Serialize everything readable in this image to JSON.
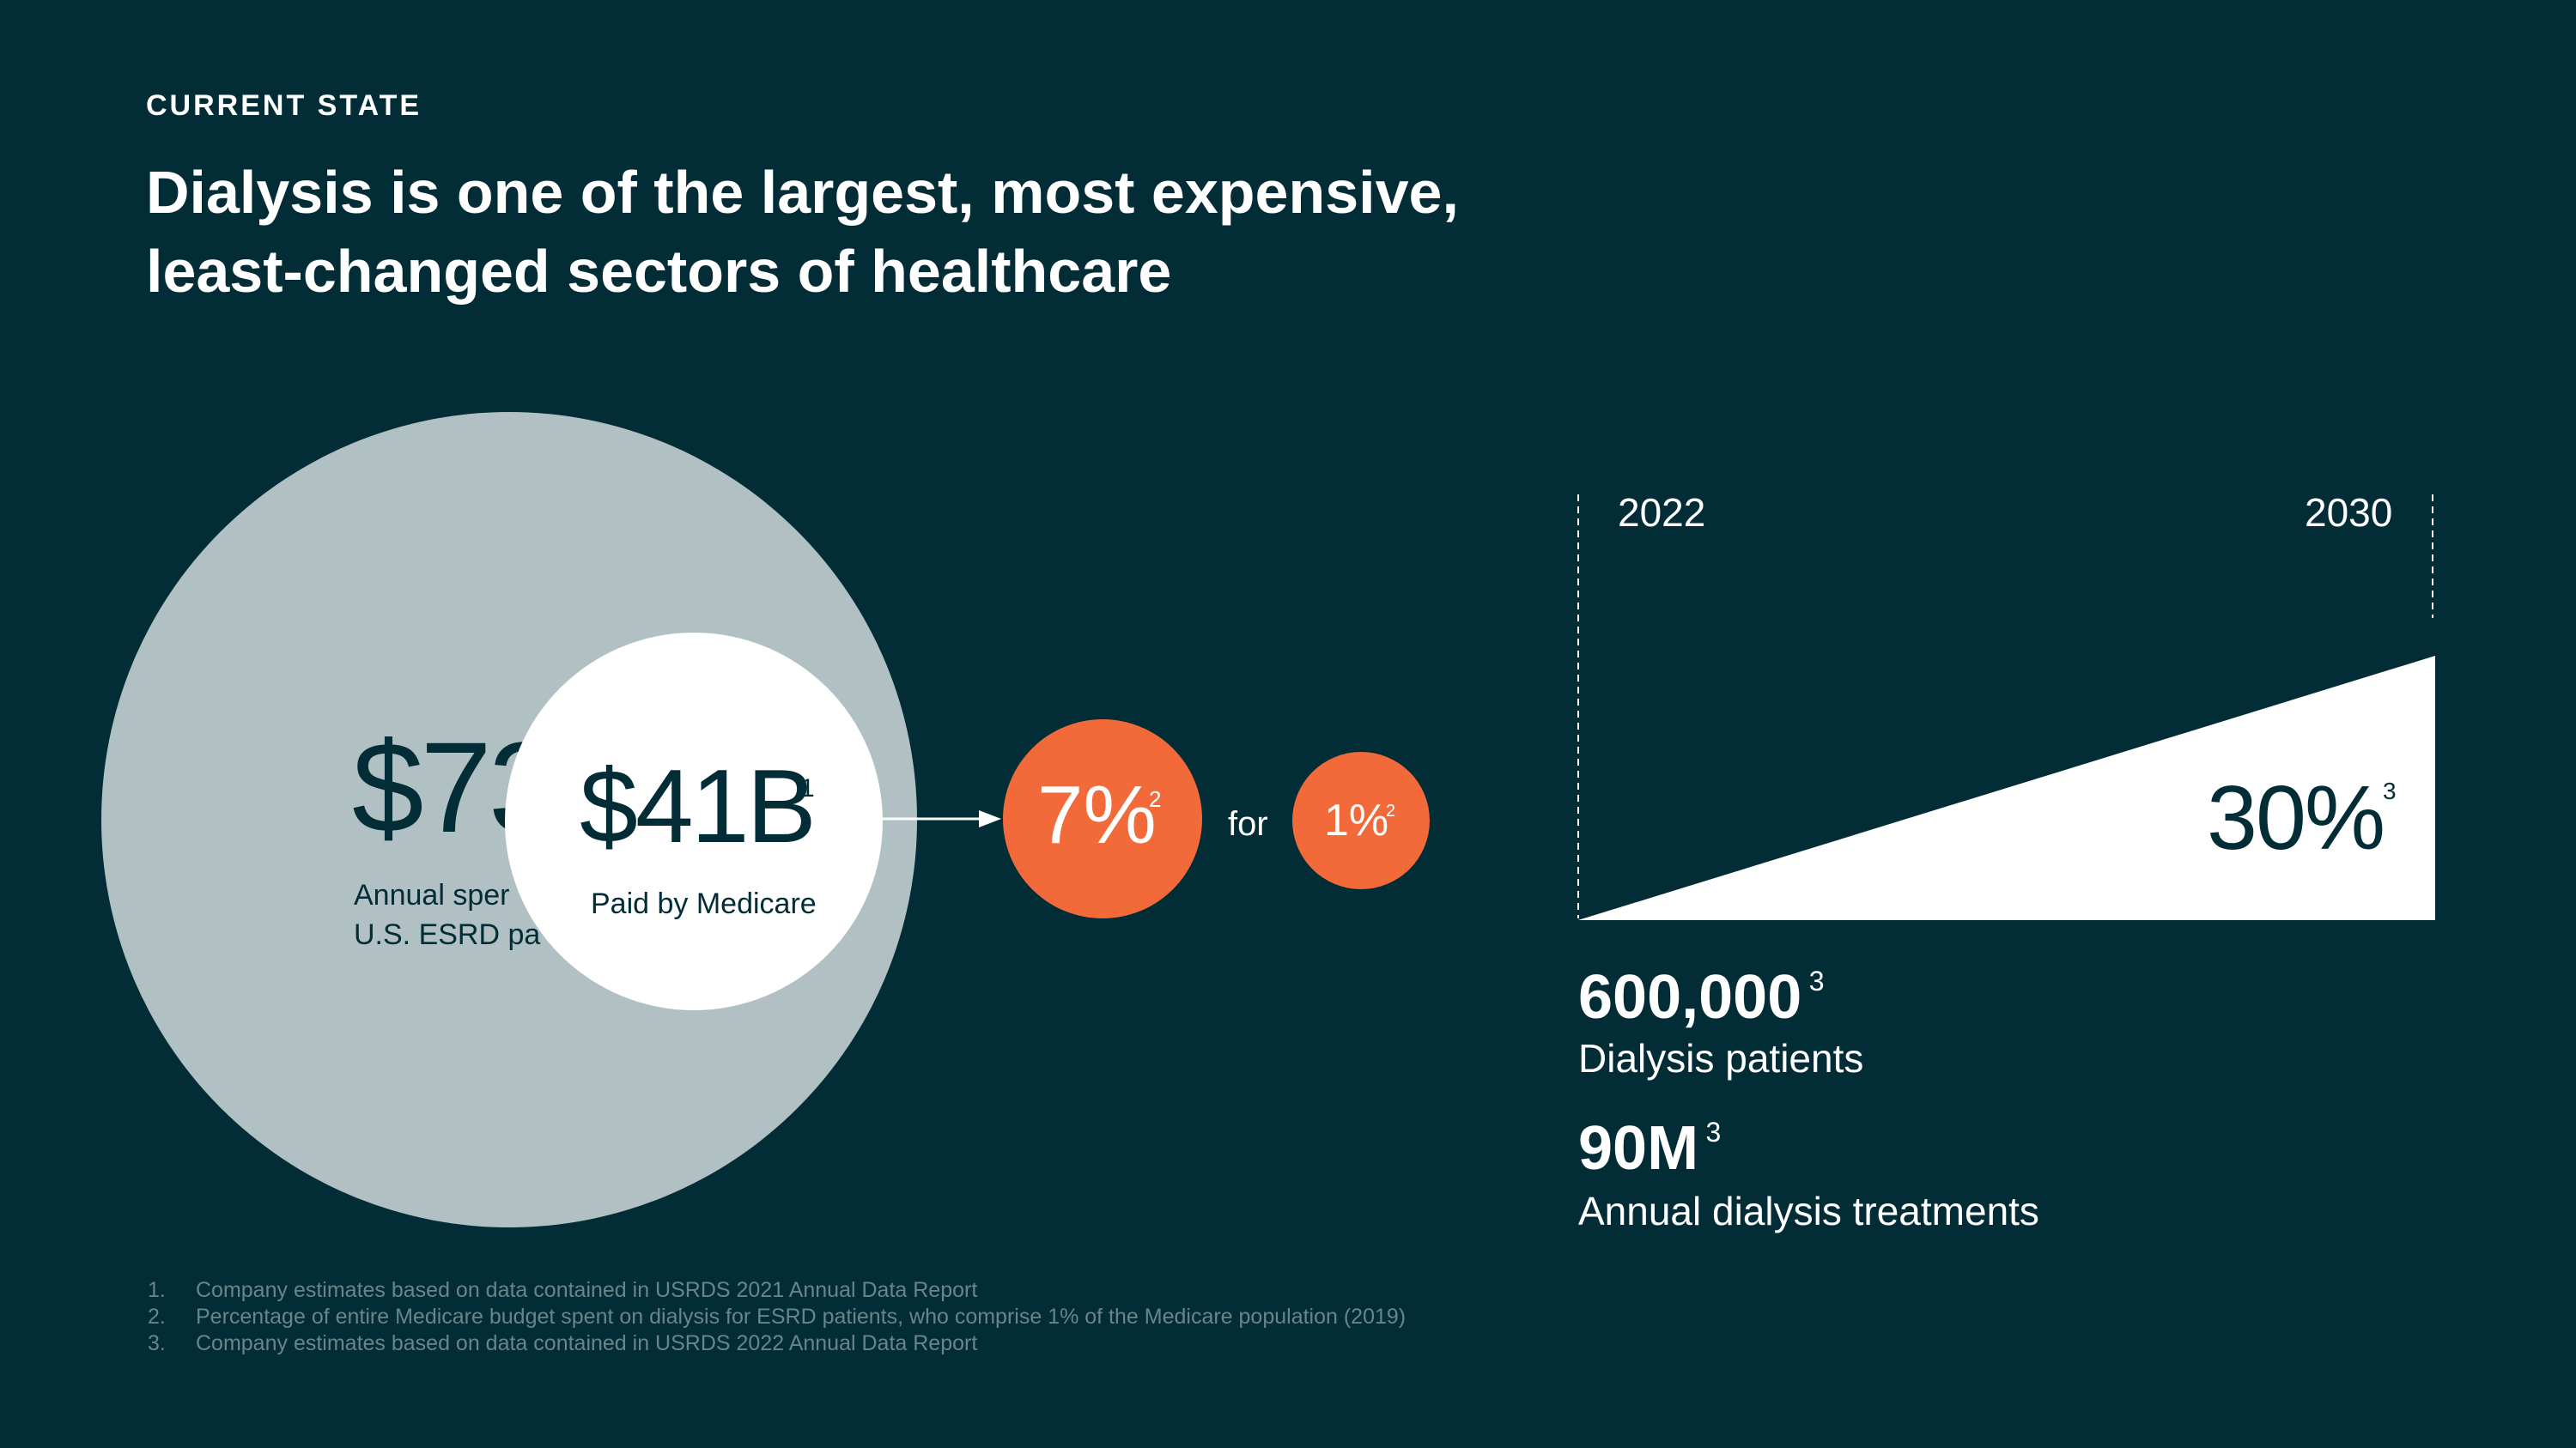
{
  "header": {
    "eyebrow": "CURRENT STATE",
    "title_line1": "Dialysis is one of the largest, most expensive,",
    "title_line2": "least-changed sectors of healthcare"
  },
  "spend": {
    "big_value": "$73",
    "big_label_line1": "Annual sper",
    "big_label_line2": "U.S. ESRD pa",
    "medicare_value": "$41B",
    "medicare_sup": "1",
    "medicare_label": "Paid by Medicare"
  },
  "budget": {
    "percent_value": "7%",
    "percent_sup": "2",
    "for_label": "for",
    "population_value": "1%",
    "population_sup": "2"
  },
  "growth": {
    "start_year": "2022",
    "end_year": "2030",
    "growth_value": "30%",
    "growth_sup": "3"
  },
  "stats": [
    {
      "value": "600,000",
      "sup": "3",
      "label": "Dialysis patients"
    },
    {
      "value": "90M",
      "sup": "3",
      "label": "Annual dialysis treatments"
    }
  ],
  "footnotes": [
    {
      "num": "1.",
      "text": "Company estimates based on data contained in USRDS 2021 Annual Data Report"
    },
    {
      "num": "2.",
      "text": "Percentage of entire Medicare budget spent on dialysis for  ESRD patients, who comprise 1% of the Medicare population (2019)"
    },
    {
      "num": "3.",
      "text": "Company estimates based on data contained in USRDS 2022 Annual Data Report"
    }
  ],
  "colors": {
    "background": "#022d36",
    "accent_orange": "#f26a39",
    "circle_gray": "#b1c1c3"
  }
}
